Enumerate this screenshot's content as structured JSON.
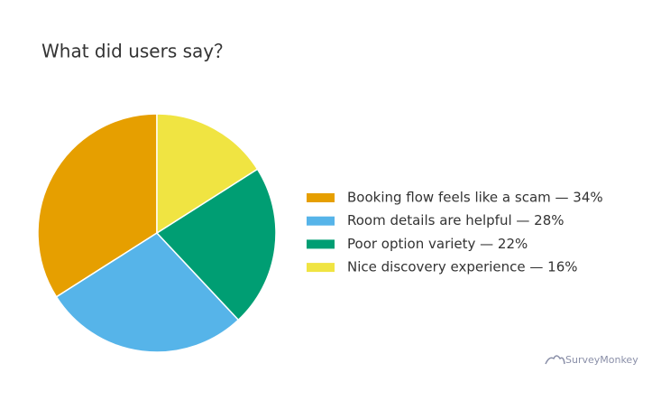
{
  "chart_data": {
    "type": "pie",
    "title": "What did users say？",
    "categories": [
      "Booking flow feels like a scam — 34%",
      "Room details are helpful — 28%",
      "Poor option variety — 22%",
      "Nice discovery experience — 16%"
    ],
    "values": [
      34,
      28,
      22,
      16
    ],
    "colors": [
      "#e69f00",
      "#56b4e9",
      "#009e73",
      "#f0e442"
    ],
    "legend": "right",
    "watermark": "SurveyMonkey"
  }
}
